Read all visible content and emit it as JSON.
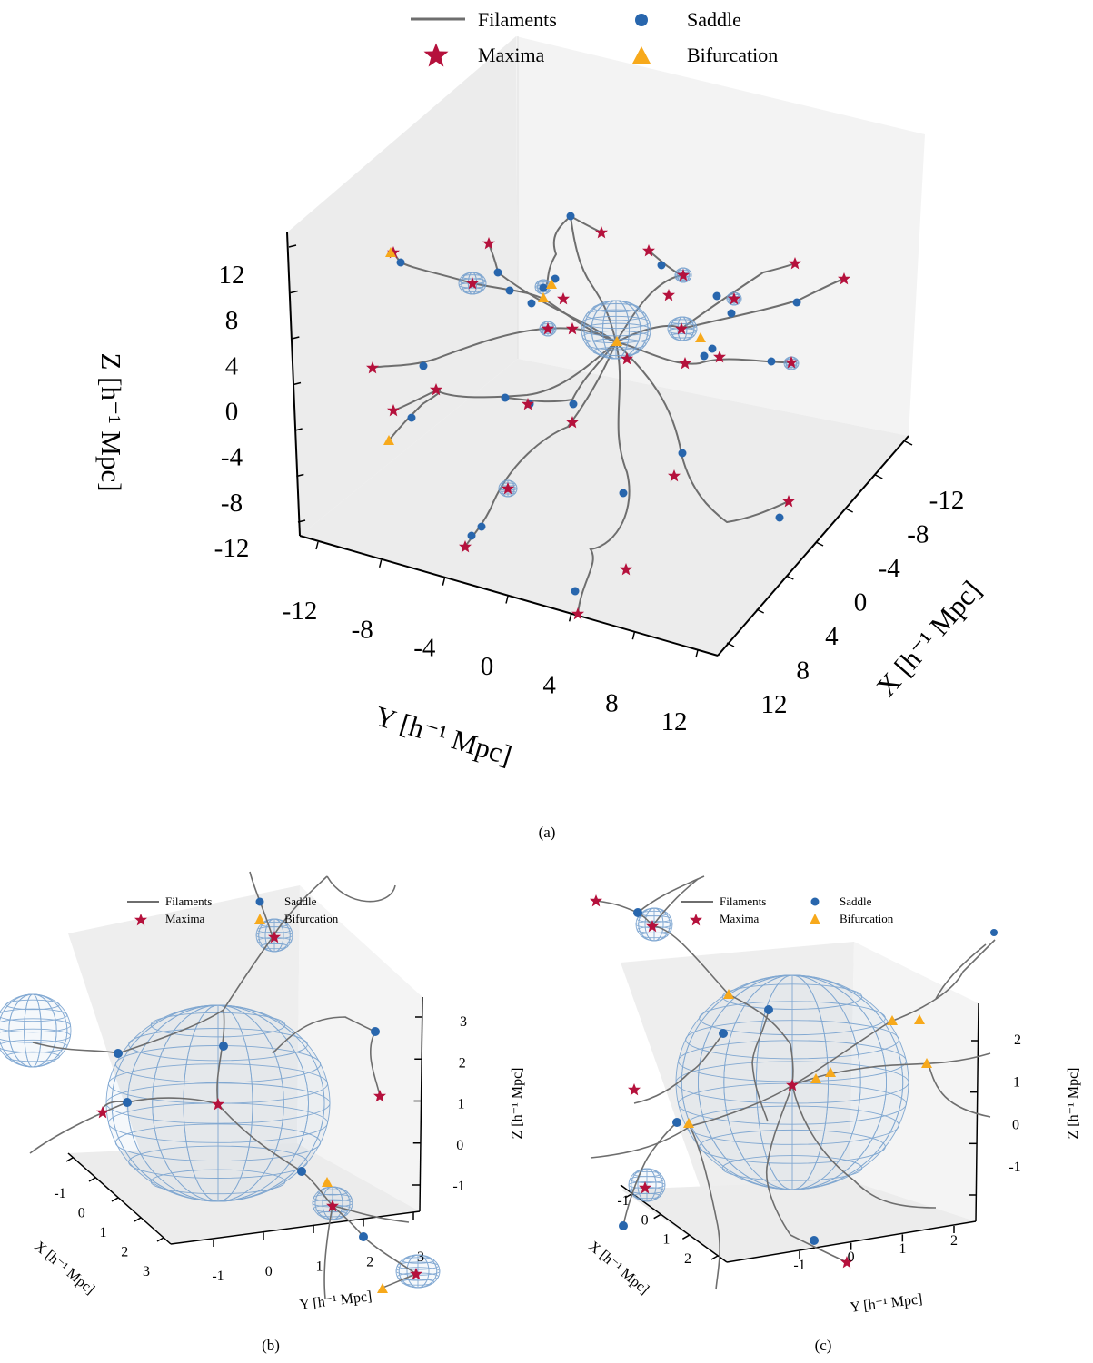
{
  "colors": {
    "filament": "#6e6e6e",
    "saddle": "#2866ad",
    "maxima": "#b5113c",
    "bifurcation": "#f7a91b",
    "sphere": "#6f9ccc",
    "pane_light": "#f2f2f2",
    "pane_dark": "#e9e9e9"
  },
  "legend": {
    "filaments": "Filaments",
    "saddle": "Saddle",
    "maxima": "Maxima",
    "bifurcation": "Bifurcation"
  },
  "chart_data": [
    {
      "panel": "a",
      "type": "scatter",
      "caption": "(a)",
      "xlabel": "X [h⁻¹ Mpc]",
      "ylabel": "Y [h⁻¹ Mpc]",
      "zlabel": "Z [h⁻¹ Mpc]",
      "x_ticks": [
        "-12",
        "-8",
        "-4",
        "0",
        "4",
        "8",
        "12"
      ],
      "y_ticks": [
        "-12",
        "-8",
        "-4",
        "0",
        "4",
        "8",
        "12"
      ],
      "z_ticks": [
        "12",
        "8",
        "4",
        "0",
        "-4",
        "-8",
        "-12"
      ],
      "xlim": [
        -12,
        12
      ],
      "ylim": [
        -12,
        12
      ],
      "zlim": [
        -12,
        12
      ],
      "series": [
        {
          "name": "Filaments",
          "marker": "line"
        },
        {
          "name": "Saddle",
          "marker": "circle"
        },
        {
          "name": "Maxima",
          "marker": "star"
        },
        {
          "name": "Bifurcation",
          "marker": "triangle"
        }
      ]
    },
    {
      "panel": "b",
      "type": "scatter",
      "caption": "(b)",
      "xlabel": "X [h⁻¹ Mpc]",
      "ylabel": "Y [h⁻¹ Mpc]",
      "zlabel": "Z [h⁻¹ Mpc]",
      "x_ticks": [
        "-1",
        "0",
        "1",
        "2",
        "3"
      ],
      "y_ticks": [
        "-1",
        "0",
        "1",
        "2",
        "3"
      ],
      "z_ticks": [
        "3",
        "2",
        "1",
        "0",
        "-1"
      ],
      "xlim": [
        -1,
        3
      ],
      "ylim": [
        -1,
        3
      ],
      "zlim": [
        -1,
        3
      ]
    },
    {
      "panel": "c",
      "type": "scatter",
      "caption": "(c)",
      "xlabel": "X [h⁻¹ Mpc]",
      "ylabel": "Y [h⁻¹ Mpc]",
      "zlabel": "Z [h⁻¹ Mpc]",
      "x_ticks": [
        "-1",
        "0",
        "1",
        "2"
      ],
      "y_ticks": [
        "-1",
        "0",
        "1",
        "2"
      ],
      "z_ticks": [
        "2",
        "1",
        "0",
        "-1"
      ],
      "xlim": [
        -1,
        2
      ],
      "ylim": [
        -1,
        2
      ],
      "zlim": [
        -1,
        2
      ]
    }
  ]
}
